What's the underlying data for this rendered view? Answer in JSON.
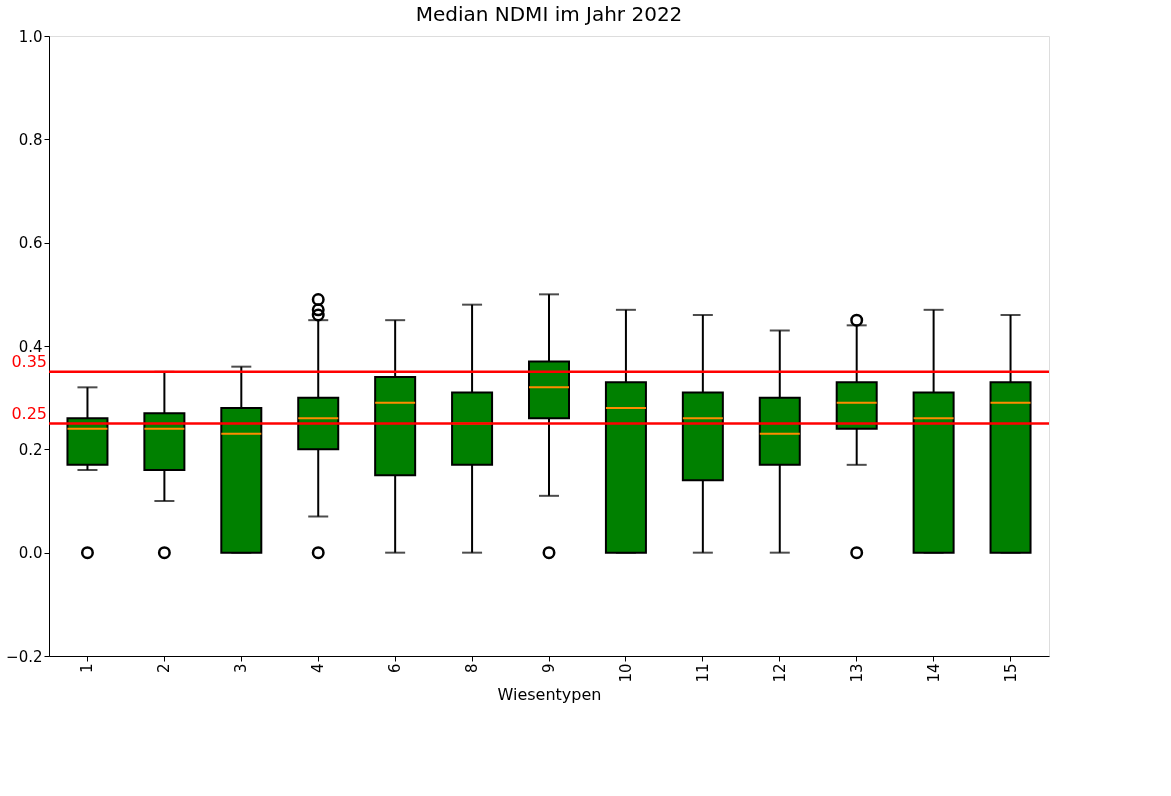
{
  "chart_data": {
    "type": "box",
    "title": "Median NDMI im Jahr 2022",
    "xlabel": "Wiesentypen",
    "categories": [
      "1",
      "2",
      "3",
      "4",
      "6",
      "8",
      "9",
      "10",
      "11",
      "12",
      "13",
      "14",
      "15"
    ],
    "color": "#008000",
    "boxes": [
      {
        "low": 0.16,
        "q1": 0.17,
        "median": 0.24,
        "q3": 0.26,
        "high": 0.32,
        "outliers": [
          0.0
        ]
      },
      {
        "low": 0.1,
        "q1": 0.16,
        "median": 0.24,
        "q3": 0.27,
        "high": 0.35,
        "outliers": [
          0.0
        ]
      },
      {
        "low": 0.0,
        "q1": 0.0,
        "median": 0.23,
        "q3": 0.28,
        "high": 0.36
      },
      {
        "low": 0.07,
        "q1": 0.2,
        "median": 0.26,
        "q3": 0.3,
        "high": 0.45,
        "outliers": [
          0.0,
          0.46,
          0.47,
          0.49
        ]
      },
      {
        "low": 0.0,
        "q1": 0.15,
        "median": 0.29,
        "q3": 0.34,
        "high": 0.45
      },
      {
        "low": 0.0,
        "q1": 0.17,
        "median": 0.25,
        "q3": 0.31,
        "high": 0.48
      },
      {
        "low": 0.11,
        "q1": 0.26,
        "median": 0.32,
        "q3": 0.37,
        "high": 0.5,
        "outliers": [
          0.0
        ]
      },
      {
        "low": 0.0,
        "q1": 0.0,
        "median": 0.28,
        "q3": 0.33,
        "high": 0.47
      },
      {
        "low": 0.0,
        "q1": 0.14,
        "median": 0.26,
        "q3": 0.31,
        "high": 0.46
      },
      {
        "low": 0.0,
        "q1": 0.17,
        "median": 0.23,
        "q3": 0.3,
        "high": 0.43
      },
      {
        "low": 0.17,
        "q1": 0.24,
        "median": 0.29,
        "q3": 0.33,
        "high": 0.44,
        "outliers": [
          0.0,
          0.45
        ]
      },
      {
        "low": 0.0,
        "q1": 0.0,
        "median": 0.26,
        "q3": 0.31,
        "high": 0.47
      },
      {
        "low": 0.0,
        "q1": 0.0,
        "median": 0.29,
        "q3": 0.33,
        "high": 0.46
      }
    ],
    "ylim": [
      -0.2,
      1.0
    ],
    "yticks": [
      {
        "value": -0.2,
        "label": "−0.2"
      },
      {
        "value": 0,
        "label": "0.0"
      },
      0.2,
      0.4,
      0.6,
      0.8,
      {
        "value": 1,
        "label": "1.0"
      }
    ],
    "ref_lines": [
      {
        "axis": "y",
        "value": 0.35,
        "label": "0.35",
        "color": "#ff0000"
      },
      {
        "axis": "y",
        "value": 0.25,
        "label": "0.25",
        "color": "#ff0000"
      }
    ],
    "grid": false
  }
}
